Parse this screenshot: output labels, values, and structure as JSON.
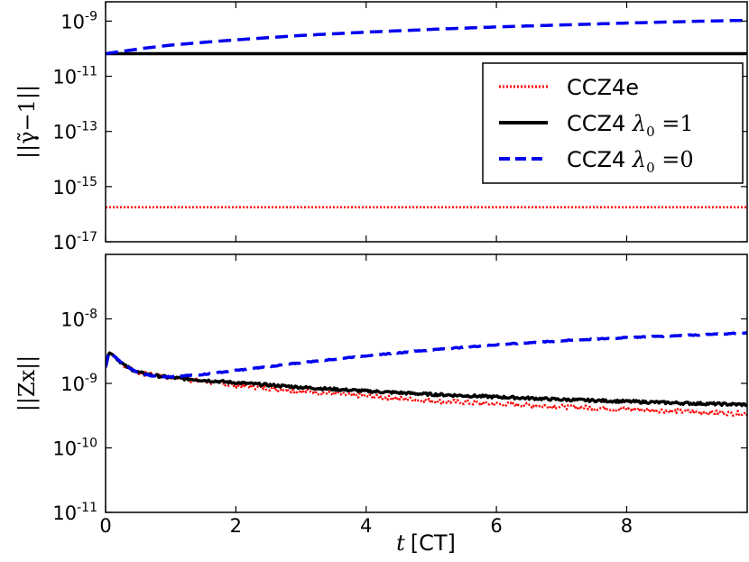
{
  "chart_data": {
    "type": "line",
    "xlabel": "t [CT]",
    "x_var": "t",
    "x_unit": "[CT]",
    "xlim": [
      0,
      9.85
    ],
    "xticks": [
      0,
      2,
      4,
      6,
      8
    ],
    "panels": [
      {
        "id": "top",
        "ylabel": "||γ̃−1||",
        "yscale": "log",
        "ylim_log10": [
          -17,
          -8.3
        ],
        "yticks": [
          {
            "base": "10",
            "exp": "-9",
            "value": -9
          },
          {
            "base": "10",
            "exp": "-11",
            "value": -11
          },
          {
            "base": "10",
            "exp": "-13",
            "value": -13
          },
          {
            "base": "10",
            "exp": "-15",
            "value": -15
          },
          {
            "base": "10",
            "exp": "-17",
            "value": -17
          }
        ],
        "series": [
          {
            "name": "CCZ4e",
            "color": "#ff0000",
            "style": "dotted",
            "x": [
              0,
              2,
              4,
              6,
              8,
              9.85
            ],
            "log10_values": [
              -15.75,
              -15.75,
              -15.75,
              -15.75,
              -15.75,
              -15.75
            ]
          },
          {
            "name": "CCZ4 λ0=1",
            "color": "#000000",
            "style": "solid",
            "x": [
              0,
              2,
              4,
              6,
              8,
              9.85
            ],
            "log10_values": [
              -10.18,
              -10.18,
              -10.18,
              -10.18,
              -10.18,
              -10.18
            ]
          },
          {
            "name": "CCZ4 λ0=0",
            "color": "#0000ee",
            "style": "dashed",
            "x": [
              0,
              0.3,
              0.6,
              1.0,
              1.5,
              2,
              3,
              4,
              5,
              6,
              7,
              8,
              9,
              9.85
            ],
            "log10_values": [
              -10.18,
              -10.08,
              -9.98,
              -9.87,
              -9.77,
              -9.68,
              -9.52,
              -9.4,
              -9.3,
              -9.21,
              -9.14,
              -9.07,
              -9.01,
              -8.97
            ]
          }
        ],
        "legend": {
          "position": "upper-right",
          "entries": [
            {
              "label_main": "CCZ4e",
              "label_lambda": "",
              "label_sub": "",
              "label_eq": "",
              "color": "#ff0000",
              "style": "dotted"
            },
            {
              "label_main": "CCZ4 ",
              "label_lambda": "λ",
              "label_sub": "0",
              "label_eq": " =1",
              "color": "#000000",
              "style": "solid"
            },
            {
              "label_main": "CCZ4 ",
              "label_lambda": "λ",
              "label_sub": "0",
              "label_eq": " =0",
              "color": "#0000ee",
              "style": "dashed"
            }
          ]
        }
      },
      {
        "id": "bottom",
        "ylabel": "||Zx||",
        "yscale": "log",
        "ylim_log10": [
          -11,
          -7.0
        ],
        "yticks": [
          {
            "base": "10",
            "exp": "-8",
            "value": -8
          },
          {
            "base": "10",
            "exp": "-9",
            "value": -9
          },
          {
            "base": "10",
            "exp": "-10",
            "value": -10
          },
          {
            "base": "10",
            "exp": "-11",
            "value": -11
          }
        ],
        "series": [
          {
            "name": "CCZ4e",
            "color": "#ff0000",
            "style": "dotted",
            "x": [
              0,
              0.05,
              0.1,
              0.2,
              0.3,
              0.5,
              0.7,
              1.0,
              1.5,
              2,
              3,
              4,
              5,
              6,
              7,
              8,
              9,
              9.85
            ],
            "log10_values": [
              -8.75,
              -8.52,
              -8.55,
              -8.64,
              -8.73,
              -8.83,
              -8.87,
              -8.91,
              -8.97,
              -9.03,
              -9.12,
              -9.2,
              -9.27,
              -9.32,
              -9.36,
              -9.4,
              -9.44,
              -9.47
            ]
          },
          {
            "name": "CCZ4 λ0=1",
            "color": "#000000",
            "style": "solid",
            "x": [
              0,
              0.05,
              0.1,
              0.2,
              0.3,
              0.5,
              0.7,
              1.0,
              1.5,
              2,
              3,
              4,
              5,
              6,
              7,
              8,
              9,
              9.85
            ],
            "log10_values": [
              -8.75,
              -8.52,
              -8.55,
              -8.64,
              -8.73,
              -8.83,
              -8.87,
              -8.91,
              -8.95,
              -8.99,
              -9.06,
              -9.12,
              -9.17,
              -9.21,
              -9.25,
              -9.28,
              -9.31,
              -9.33
            ]
          },
          {
            "name": "CCZ4 λ0=0",
            "color": "#0000ee",
            "style": "dashed",
            "x": [
              0,
              0.05,
              0.1,
              0.2,
              0.3,
              0.5,
              0.7,
              1.0,
              1.5,
              2,
              3,
              4,
              5,
              6,
              7,
              8,
              9,
              9.85
            ],
            "log10_values": [
              -8.75,
              -8.52,
              -8.55,
              -8.64,
              -8.73,
              -8.83,
              -8.88,
              -8.9,
              -8.86,
              -8.8,
              -8.68,
              -8.57,
              -8.48,
              -8.4,
              -8.34,
              -8.29,
              -8.25,
              -8.22
            ]
          }
        ]
      }
    ]
  }
}
